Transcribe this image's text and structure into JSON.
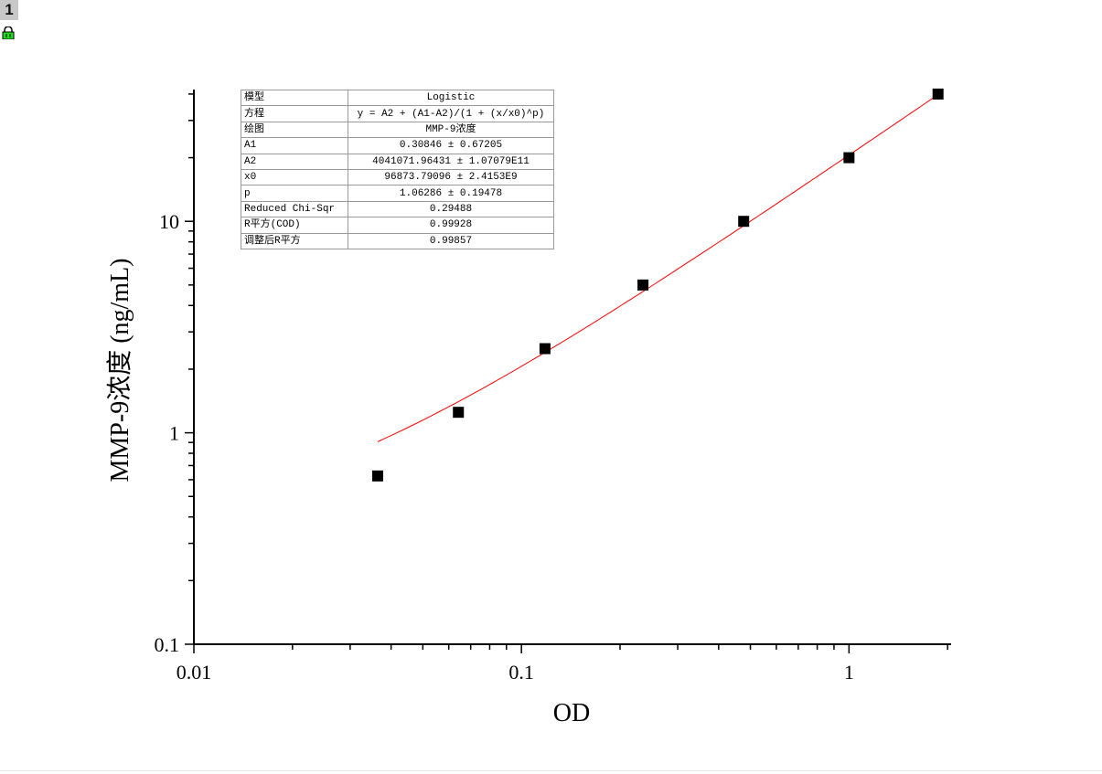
{
  "page_badge": "1",
  "icons": {
    "lock": "lock-icon"
  },
  "colors": {
    "fit_line": "#ff0000",
    "points": "#000000",
    "lock": "#22dd22"
  },
  "fit_table": [
    {
      "key": "模型",
      "value": "Logistic"
    },
    {
      "key": "方程",
      "value": "y = A2 + (A1-A2)/(1 + (x/x0)^p)"
    },
    {
      "key": "绘图",
      "value": "MMP-9浓度"
    },
    {
      "key": "A1",
      "value": "0.30846  ±  0.67205"
    },
    {
      "key": "A2",
      "value": "4041071.96431  ±  1.07079E11"
    },
    {
      "key": "x0",
      "value": "96873.79096  ±  2.4153E9"
    },
    {
      "key": "p",
      "value": "1.06286  ±  0.19478"
    },
    {
      "key": "Reduced Chi-Sqr",
      "value": "0.29488"
    },
    {
      "key": "R平方(COD)",
      "value": "0.99928"
    },
    {
      "key": "调整后R平方",
      "value": "0.99857"
    }
  ],
  "chart_data": {
    "type": "scatter",
    "xlabel": "OD",
    "ylabel": "MMP-9浓度 (ng/mL)",
    "xscale": "log",
    "yscale": "log",
    "xlim": [
      0.01,
      2.05
    ],
    "ylim": [
      0.1,
      42
    ],
    "xticks": [
      {
        "v": 0.01,
        "label": "0.01"
      },
      {
        "v": 0.1,
        "label": "0.1"
      },
      {
        "v": 1,
        "label": "1"
      }
    ],
    "yticks": [
      {
        "v": 0.1,
        "label": "0.1"
      },
      {
        "v": 1,
        "label": "1"
      },
      {
        "v": 10,
        "label": "10"
      }
    ],
    "grid": false,
    "points": {
      "x": [
        0.0364,
        0.0642,
        0.118,
        0.235,
        0.477,
        1.0,
        1.87
      ],
      "y": [
        0.625,
        1.25,
        2.5,
        5,
        10,
        20,
        40
      ]
    },
    "fit": {
      "model": "Logistic",
      "A1": 0.30846,
      "A2": 4041071.96431,
      "x0": 96873.79096,
      "p": 1.06286,
      "x_range": [
        0.0364,
        1.87
      ]
    }
  }
}
